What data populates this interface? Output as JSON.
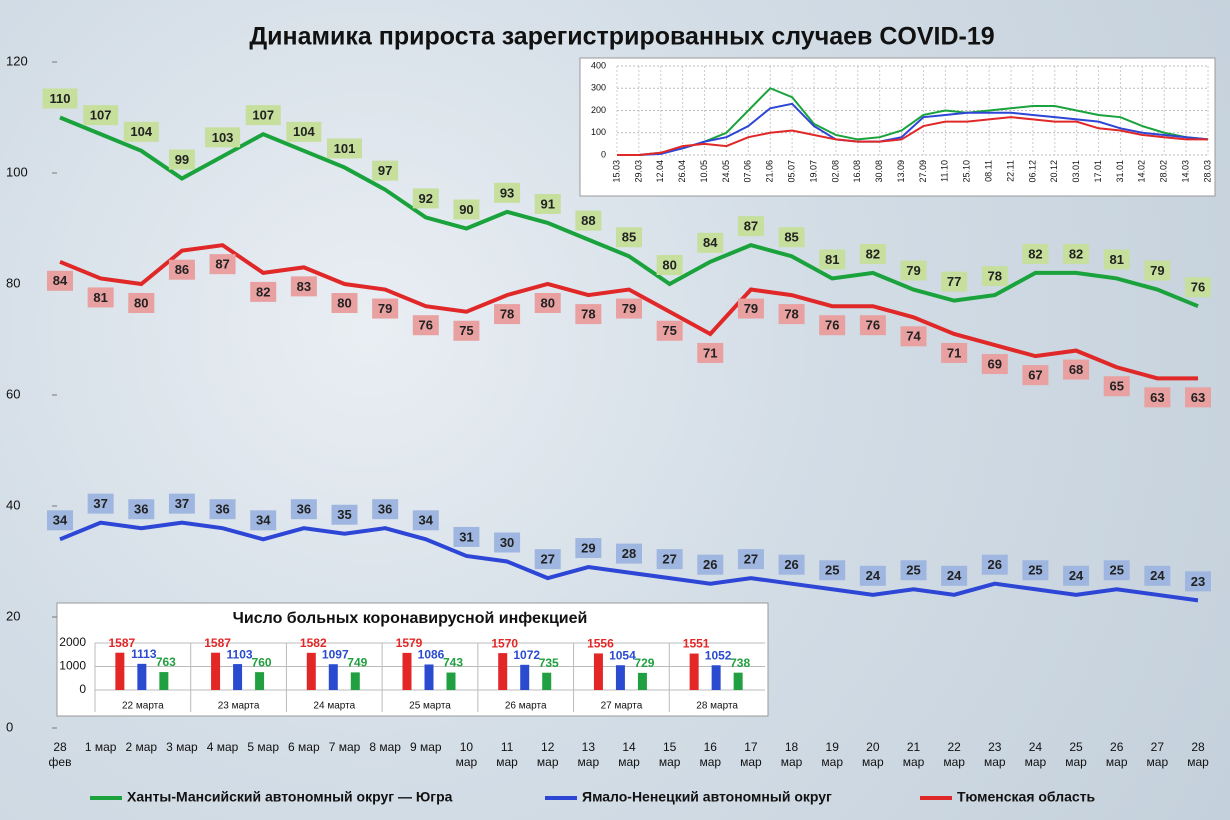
{
  "chart_data": [
    {
      "type": "line",
      "title": "Динамика прироста зарегистрированных случаев COVID-19",
      "categories": [
        "28 фев",
        "1 мар",
        "2 мар",
        "3 мар",
        "4 мар",
        "5 мар",
        "6 мар",
        "7 мар",
        "8 мар",
        "9 мар",
        "10 мар",
        "11 мар",
        "12 мар",
        "13 мар",
        "14 мар",
        "15 мар",
        "16 мар",
        "17 мар",
        "18 мар",
        "19 мар",
        "20 мар",
        "21 мар",
        "22 мар",
        "23 мар",
        "24 мар",
        "25 мар",
        "26 мар",
        "27 мар",
        "28 мар"
      ],
      "series": [
        {
          "name": "Ханты-Мансийский автономный округ — Югра",
          "color": "#1aa23c",
          "values": [
            110,
            107,
            104,
            99,
            103,
            107,
            104,
            101,
            97,
            92,
            90,
            93,
            91,
            88,
            85,
            80,
            84,
            87,
            85,
            81,
            82,
            79,
            77,
            78,
            82,
            82,
            81,
            79,
            76
          ]
        },
        {
          "name": "Ямало-Ненецкий автономный округ",
          "color": "#2d46d6",
          "values": [
            34,
            37,
            36,
            37,
            36,
            34,
            36,
            35,
            36,
            34,
            31,
            30,
            27,
            29,
            28,
            27,
            26,
            27,
            26,
            25,
            24,
            25,
            24,
            26,
            25,
            24,
            25,
            24,
            23
          ]
        },
        {
          "name": "Тюменская область",
          "color": "#e02828",
          "values": [
            84,
            81,
            80,
            86,
            87,
            82,
            83,
            80,
            79,
            76,
            75,
            78,
            80,
            78,
            79,
            75,
            71,
            79,
            78,
            76,
            76,
            74,
            71,
            69,
            67,
            68,
            65,
            63,
            63
          ]
        }
      ],
      "ylim": [
        0,
        120
      ],
      "yticks": [
        0,
        20,
        40,
        60,
        80,
        100,
        120
      ],
      "grid": false
    },
    {
      "type": "line",
      "categories": [
        "15.03",
        "29.03",
        "12.04",
        "26.04",
        "10.05",
        "24.05",
        "07.06",
        "21.06",
        "05.07",
        "19.07",
        "02.08",
        "16.08",
        "30.08",
        "13.09",
        "27.09",
        "11.10",
        "25.10",
        "08.11",
        "22.11",
        "06.12",
        "20.12",
        "03.01",
        "17.01",
        "31.01",
        "14.02",
        "28.02",
        "14.03",
        "28.03"
      ],
      "series": [
        {
          "color": "#1aa23c",
          "values": [
            0,
            0,
            10,
            30,
            60,
            100,
            200,
            300,
            260,
            140,
            90,
            70,
            80,
            110,
            180,
            200,
            190,
            200,
            210,
            220,
            220,
            200,
            180,
            170,
            130,
            100,
            80,
            70
          ]
        },
        {
          "color": "#2d46d6",
          "values": [
            0,
            0,
            5,
            30,
            60,
            80,
            130,
            210,
            230,
            130,
            70,
            60,
            60,
            80,
            170,
            180,
            190,
            190,
            190,
            180,
            170,
            160,
            150,
            120,
            100,
            90,
            80,
            70
          ]
        },
        {
          "color": "#e02828",
          "values": [
            0,
            0,
            10,
            40,
            50,
            40,
            80,
            100,
            110,
            90,
            70,
            60,
            60,
            70,
            130,
            150,
            150,
            160,
            170,
            160,
            150,
            150,
            120,
            110,
            90,
            80,
            70,
            70
          ]
        }
      ],
      "ylim": [
        0,
        400
      ],
      "yticks": [
        0,
        100,
        200,
        300,
        400
      ],
      "grid": true
    },
    {
      "type": "bar",
      "title": "Число больных  коронавирусной  инфекцией",
      "categories": [
        "22 марта",
        "23 марта",
        "24 марта",
        "25 марта",
        "26 марта",
        "27 марта",
        "28 марта"
      ],
      "series": [
        {
          "color": "#e32626",
          "values": [
            1587,
            1587,
            1582,
            1579,
            1570,
            1556,
            1551
          ]
        },
        {
          "color": "#2a4bd0",
          "values": [
            1113,
            1103,
            1097,
            1086,
            1072,
            1054,
            1052
          ]
        },
        {
          "color": "#20a040",
          "values": [
            763,
            760,
            749,
            743,
            735,
            729,
            738
          ]
        }
      ],
      "ylim": [
        0,
        2000
      ],
      "yticks": [
        0,
        1000,
        2000
      ],
      "grid": true
    }
  ]
}
